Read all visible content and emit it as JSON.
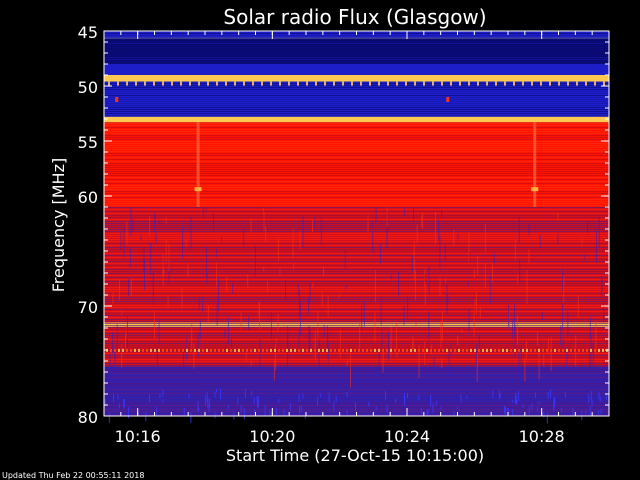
{
  "chart_data": {
    "type": "heatmap",
    "title": "Solar radio Flux (Glasgow)",
    "xlabel": "Start Time (27-Oct-15 10:15:00)",
    "ylabel": "Frequency [MHz]",
    "y_inverted": true,
    "ylim": [
      45,
      80
    ],
    "xlim": [
      "10:15:00",
      "10:30:00"
    ],
    "y_ticks": [
      45,
      50,
      55,
      60,
      70,
      80
    ],
    "x_ticks": [
      "10:16",
      "10:20",
      "10:24",
      "10:28"
    ],
    "grid": false,
    "colors": {
      "background": "#000000",
      "low": "#0a0a6e",
      "mid": "#1e1ec8",
      "high": "#ff1400",
      "peak": "#ffc850"
    },
    "bands": [
      {
        "from": 45.0,
        "to": 45.6,
        "level": "mid"
      },
      {
        "from": 45.6,
        "to": 48.0,
        "level": "low"
      },
      {
        "from": 48.0,
        "to": 49.0,
        "level": "mid"
      },
      {
        "from": 49.0,
        "to": 49.6,
        "level": "peak"
      },
      {
        "from": 49.6,
        "to": 52.8,
        "level": "mid"
      },
      {
        "from": 52.8,
        "to": 53.3,
        "level": "peak"
      },
      {
        "from": 53.3,
        "to": 61.0,
        "level": "high"
      },
      {
        "from": 61.0,
        "to": 71.5,
        "level": "high_mixed"
      },
      {
        "from": 71.5,
        "to": 71.9,
        "level": "peak"
      },
      {
        "from": 71.9,
        "to": 75.5,
        "level": "high_mixed"
      },
      {
        "from": 75.5,
        "to": 80.0,
        "level": "low_mixed"
      }
    ]
  },
  "footer": {
    "updated": "Updated Thu Feb 22 00:55:11 2018"
  }
}
